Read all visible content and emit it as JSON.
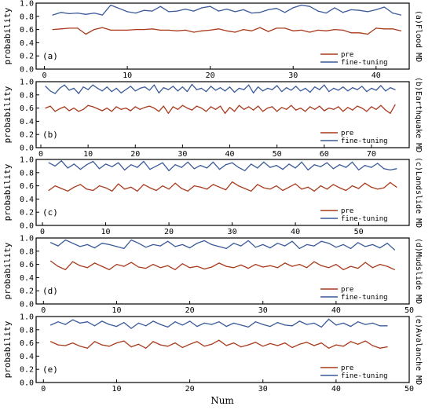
{
  "figure": {
    "xlabel": "Num"
  },
  "chart_data": [
    {
      "type": "line",
      "letter": "(a)",
      "side_title": "(a)Flood MD",
      "ylabel": "probability",
      "xlim": [
        -1,
        44
      ],
      "ylim": [
        0.0,
        1.0
      ],
      "xticks": [
        0,
        10,
        20,
        30,
        40
      ],
      "yticks": [
        0.0,
        0.2,
        0.4,
        0.6,
        0.8,
        1.0
      ],
      "legend": "right",
      "series": [
        {
          "name": "pre",
          "color": "#a93a1c",
          "x_start": 1,
          "values": [
            0.6,
            0.61,
            0.62,
            0.62,
            0.53,
            0.6,
            0.63,
            0.59,
            0.59,
            0.59,
            0.6,
            0.6,
            0.61,
            0.59,
            0.59,
            0.58,
            0.59,
            0.56,
            0.58,
            0.59,
            0.61,
            0.58,
            0.56,
            0.6,
            0.58,
            0.63,
            0.57,
            0.62,
            0.62,
            0.58,
            0.59,
            0.56,
            0.59,
            0.58,
            0.6,
            0.59,
            0.55,
            0.55,
            0.53,
            0.62,
            0.61,
            0.61,
            0.58
          ]
        },
        {
          "name": "fine-tuning",
          "color": "#3a5a9a",
          "x_start": 1,
          "values": [
            0.82,
            0.86,
            0.84,
            0.85,
            0.83,
            0.85,
            0.82,
            0.97,
            0.92,
            0.87,
            0.85,
            0.89,
            0.88,
            0.95,
            0.87,
            0.88,
            0.91,
            0.88,
            0.93,
            0.95,
            0.88,
            0.91,
            0.87,
            0.9,
            0.85,
            0.86,
            0.9,
            0.92,
            0.86,
            0.93,
            0.97,
            0.95,
            0.88,
            0.85,
            0.93,
            0.86,
            0.9,
            0.89,
            0.87,
            0.9,
            0.94,
            0.85,
            0.82
          ]
        }
      ]
    },
    {
      "type": "line",
      "letter": "(b)",
      "side_title": "(b)Earthquake MD",
      "ylabel": "probability",
      "xlim": [
        -1,
        78
      ],
      "ylim": [
        0.0,
        1.0
      ],
      "xticks": [
        0,
        10,
        20,
        30,
        40,
        50,
        60,
        70
      ],
      "yticks": [
        0.0,
        0.2,
        0.4,
        0.6,
        0.8,
        1.0
      ],
      "legend": "right",
      "series": [
        {
          "name": "pre",
          "color": "#a93a1c",
          "x_start": 1,
          "values": [
            0.6,
            0.63,
            0.55,
            0.59,
            0.62,
            0.56,
            0.6,
            0.55,
            0.58,
            0.64,
            0.62,
            0.59,
            0.56,
            0.6,
            0.55,
            0.62,
            0.58,
            0.6,
            0.56,
            0.62,
            0.58,
            0.61,
            0.63,
            0.6,
            0.55,
            0.63,
            0.52,
            0.62,
            0.58,
            0.64,
            0.6,
            0.57,
            0.63,
            0.6,
            0.55,
            0.62,
            0.58,
            0.63,
            0.52,
            0.61,
            0.55,
            0.64,
            0.58,
            0.62,
            0.57,
            0.63,
            0.55,
            0.6,
            0.62,
            0.55,
            0.61,
            0.58,
            0.64,
            0.57,
            0.6,
            0.55,
            0.62,
            0.58,
            0.63,
            0.56,
            0.6,
            0.58,
            0.62,
            0.55,
            0.61,
            0.57,
            0.63,
            0.6,
            0.55,
            0.62,
            0.58,
            0.64,
            0.57,
            0.52,
            0.65
          ]
        },
        {
          "name": "fine-tuning",
          "color": "#3a5a9a",
          "x_start": 1,
          "values": [
            0.93,
            0.86,
            0.82,
            0.9,
            0.95,
            0.87,
            0.9,
            0.82,
            0.92,
            0.88,
            0.95,
            0.9,
            0.86,
            0.92,
            0.85,
            0.9,
            0.83,
            0.88,
            0.93,
            0.86,
            0.9,
            0.92,
            0.87,
            0.95,
            0.83,
            0.91,
            0.88,
            0.93,
            0.86,
            0.92,
            0.85,
            0.96,
            0.88,
            0.9,
            0.85,
            0.93,
            0.87,
            0.91,
            0.86,
            0.92,
            0.84,
            0.9,
            0.88,
            0.95,
            0.83,
            0.92,
            0.86,
            0.9,
            0.88,
            0.94,
            0.85,
            0.91,
            0.87,
            0.93,
            0.86,
            0.9,
            0.84,
            0.92,
            0.88,
            0.95,
            0.85,
            0.9,
            0.87,
            0.92,
            0.86,
            0.91,
            0.88,
            0.93,
            0.85,
            0.9,
            0.87,
            0.94,
            0.86,
            0.91,
            0.88
          ]
        }
      ]
    },
    {
      "type": "line",
      "letter": "(c)",
      "side_title": "(c)Landslide MD",
      "ylabel": "probability",
      "xlim": [
        -1,
        58
      ],
      "ylim": [
        0.0,
        1.0
      ],
      "xticks": [
        0,
        10,
        20,
        30,
        40,
        50
      ],
      "yticks": [
        0.0,
        0.2,
        0.4,
        0.6,
        0.8,
        1.0
      ],
      "legend": "right",
      "series": [
        {
          "name": "pre",
          "color": "#a93a1c",
          "x_start": 1,
          "values": [
            0.53,
            0.6,
            0.56,
            0.52,
            0.58,
            0.62,
            0.55,
            0.53,
            0.6,
            0.57,
            0.52,
            0.63,
            0.55,
            0.58,
            0.52,
            0.62,
            0.57,
            0.53,
            0.6,
            0.55,
            0.64,
            0.56,
            0.52,
            0.6,
            0.58,
            0.55,
            0.62,
            0.58,
            0.54,
            0.66,
            0.6,
            0.56,
            0.52,
            0.62,
            0.57,
            0.55,
            0.6,
            0.53,
            0.58,
            0.63,
            0.55,
            0.58,
            0.52,
            0.6,
            0.55,
            0.62,
            0.57,
            0.53,
            0.6,
            0.56,
            0.64,
            0.58,
            0.55,
            0.57,
            0.65,
            0.58
          ]
        },
        {
          "name": "fine-tuning",
          "color": "#3a5a9a",
          "x_start": 1,
          "values": [
            0.95,
            0.9,
            0.98,
            0.87,
            0.93,
            0.85,
            0.92,
            0.97,
            0.86,
            0.93,
            0.89,
            0.95,
            0.84,
            0.92,
            0.88,
            0.97,
            0.85,
            0.9,
            0.95,
            0.83,
            0.92,
            0.88,
            0.96,
            0.86,
            0.91,
            0.87,
            0.96,
            0.85,
            0.92,
            0.95,
            0.88,
            0.83,
            0.93,
            0.87,
            0.96,
            0.88,
            0.91,
            0.85,
            0.93,
            0.87,
            0.96,
            0.84,
            0.92,
            0.89,
            0.95,
            0.86,
            0.92,
            0.88,
            0.96,
            0.84,
            0.91,
            0.88,
            0.94,
            0.86,
            0.84,
            0.86
          ]
        }
      ]
    },
    {
      "type": "line",
      "letter": "(d)",
      "side_title": "(d)Mudslide MD",
      "ylabel": "probability",
      "xlim": [
        -1,
        50
      ],
      "ylim": [
        0.0,
        1.0
      ],
      "xticks": [
        0,
        10,
        20,
        30,
        40,
        50
      ],
      "yticks": [
        0.0,
        0.2,
        0.4,
        0.6,
        0.8,
        1.0
      ],
      "legend": "right",
      "series": [
        {
          "name": "pre",
          "color": "#a93a1c",
          "x_start": 1,
          "values": [
            0.65,
            0.57,
            0.52,
            0.64,
            0.58,
            0.55,
            0.62,
            0.57,
            0.52,
            0.6,
            0.57,
            0.63,
            0.56,
            0.54,
            0.6,
            0.55,
            0.58,
            0.52,
            0.61,
            0.55,
            0.57,
            0.53,
            0.56,
            0.62,
            0.57,
            0.55,
            0.59,
            0.54,
            0.6,
            0.56,
            0.58,
            0.55,
            0.62,
            0.57,
            0.6,
            0.55,
            0.64,
            0.58,
            0.55,
            0.6,
            0.52,
            0.57,
            0.54,
            0.63,
            0.55,
            0.6,
            0.57,
            0.52
          ]
        },
        {
          "name": "fine-tuning",
          "color": "#3a5a9a",
          "x_start": 1,
          "values": [
            0.93,
            0.88,
            0.97,
            0.92,
            0.87,
            0.9,
            0.85,
            0.92,
            0.9,
            0.87,
            0.84,
            0.97,
            0.92,
            0.86,
            0.9,
            0.88,
            0.95,
            0.87,
            0.9,
            0.85,
            0.92,
            0.96,
            0.9,
            0.87,
            0.84,
            0.92,
            0.88,
            0.96,
            0.86,
            0.9,
            0.85,
            0.92,
            0.88,
            0.95,
            0.84,
            0.9,
            0.88,
            0.95,
            0.92,
            0.86,
            0.9,
            0.84,
            0.93,
            0.87,
            0.9,
            0.85,
            0.92,
            0.82
          ]
        }
      ]
    },
    {
      "type": "line",
      "letter": "(e)",
      "side_title": "(e)Avalanche MD",
      "ylabel": "probability",
      "xlim": [
        -1,
        50
      ],
      "ylim": [
        0.0,
        1.0
      ],
      "xticks": [
        0,
        10,
        20,
        30,
        40,
        50
      ],
      "yticks": [
        0.0,
        0.2,
        0.4,
        0.6,
        0.8,
        1.0
      ],
      "legend": "right",
      "series": [
        {
          "name": "pre",
          "color": "#a93a1c",
          "x_start": 1,
          "values": [
            0.62,
            0.57,
            0.56,
            0.6,
            0.55,
            0.52,
            0.62,
            0.57,
            0.55,
            0.6,
            0.63,
            0.54,
            0.58,
            0.52,
            0.62,
            0.57,
            0.55,
            0.6,
            0.53,
            0.58,
            0.62,
            0.55,
            0.58,
            0.64,
            0.56,
            0.6,
            0.54,
            0.57,
            0.61,
            0.55,
            0.59,
            0.56,
            0.6,
            0.53,
            0.58,
            0.61,
            0.56,
            0.6,
            0.52,
            0.57,
            0.55,
            0.62,
            0.58,
            0.63,
            0.56,
            0.52,
            0.54
          ]
        },
        {
          "name": "fine-tuning",
          "color": "#3a5a9a",
          "x_start": 1,
          "values": [
            0.87,
            0.92,
            0.88,
            0.95,
            0.9,
            0.92,
            0.86,
            0.93,
            0.88,
            0.85,
            0.91,
            0.82,
            0.9,
            0.86,
            0.93,
            0.88,
            0.84,
            0.92,
            0.87,
            0.93,
            0.85,
            0.9,
            0.88,
            0.92,
            0.85,
            0.9,
            0.87,
            0.84,
            0.92,
            0.88,
            0.85,
            0.91,
            0.87,
            0.86,
            0.93,
            0.88,
            0.9,
            0.84,
            0.96,
            0.87,
            0.9,
            0.85,
            0.92,
            0.88,
            0.9,
            0.86,
            0.86
          ]
        }
      ]
    }
  ]
}
